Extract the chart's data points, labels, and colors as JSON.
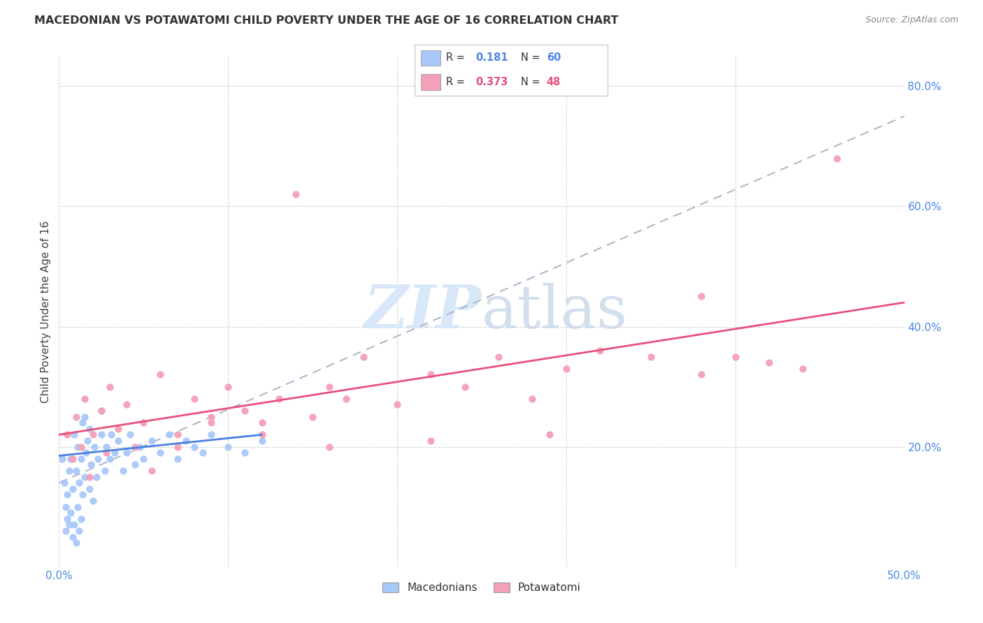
{
  "title": "MACEDONIAN VS POTAWATOMI CHILD POVERTY UNDER THE AGE OF 16 CORRELATION CHART",
  "source": "Source: ZipAtlas.com",
  "ylabel": "Child Poverty Under the Age of 16",
  "xlim": [
    0.0,
    0.5
  ],
  "ylim": [
    0.0,
    0.85
  ],
  "xtick_vals": [
    0.0,
    0.1,
    0.2,
    0.3,
    0.4,
    0.5
  ],
  "ytick_vals": [
    0.0,
    0.2,
    0.4,
    0.6,
    0.8
  ],
  "ytick_labels": [
    "",
    "20.0%",
    "40.0%",
    "60.0%",
    "80.0%"
  ],
  "xtick_labels": [
    "0.0%",
    "",
    "",
    "",
    "",
    "50.0%"
  ],
  "macedonian_R": 0.181,
  "macedonian_N": 60,
  "potawatomi_R": 0.373,
  "potawatomi_N": 48,
  "macedonian_color": "#a8c8fa",
  "potawatomi_color": "#f4a0b8",
  "macedonian_line_color": "#4a80e0",
  "potawatomi_line_color": "#e8507a",
  "watermark_color": "#d8e8f8",
  "legend_macedonians": "Macedonians",
  "legend_potawatomi": "Potawatomi",
  "mac_x": [
    0.002,
    0.003,
    0.004,
    0.004,
    0.005,
    0.005,
    0.006,
    0.006,
    0.007,
    0.007,
    0.008,
    0.008,
    0.009,
    0.009,
    0.01,
    0.01,
    0.011,
    0.011,
    0.012,
    0.012,
    0.013,
    0.013,
    0.014,
    0.014,
    0.015,
    0.015,
    0.016,
    0.017,
    0.018,
    0.018,
    0.019,
    0.02,
    0.021,
    0.022,
    0.023,
    0.025,
    0.025,
    0.027,
    0.028,
    0.03,
    0.031,
    0.033,
    0.035,
    0.038,
    0.04,
    0.042,
    0.045,
    0.048,
    0.05,
    0.055,
    0.06,
    0.065,
    0.07,
    0.075,
    0.08,
    0.085,
    0.09,
    0.1,
    0.11,
    0.12
  ],
  "mac_y": [
    0.18,
    0.14,
    0.1,
    0.06,
    0.08,
    0.12,
    0.07,
    0.16,
    0.09,
    0.18,
    0.05,
    0.13,
    0.07,
    0.22,
    0.04,
    0.16,
    0.1,
    0.2,
    0.06,
    0.14,
    0.08,
    0.18,
    0.12,
    0.24,
    0.15,
    0.25,
    0.19,
    0.21,
    0.13,
    0.23,
    0.17,
    0.11,
    0.2,
    0.15,
    0.18,
    0.22,
    0.26,
    0.16,
    0.2,
    0.18,
    0.22,
    0.19,
    0.21,
    0.16,
    0.19,
    0.22,
    0.17,
    0.2,
    0.18,
    0.21,
    0.19,
    0.22,
    0.18,
    0.21,
    0.2,
    0.19,
    0.22,
    0.2,
    0.19,
    0.21
  ],
  "pot_x": [
    0.005,
    0.008,
    0.01,
    0.013,
    0.015,
    0.018,
    0.02,
    0.025,
    0.028,
    0.03,
    0.035,
    0.04,
    0.045,
    0.05,
    0.055,
    0.06,
    0.07,
    0.08,
    0.09,
    0.1,
    0.11,
    0.12,
    0.13,
    0.14,
    0.15,
    0.16,
    0.17,
    0.18,
    0.2,
    0.22,
    0.24,
    0.26,
    0.28,
    0.3,
    0.32,
    0.35,
    0.38,
    0.4,
    0.42,
    0.44,
    0.46,
    0.38,
    0.29,
    0.22,
    0.16,
    0.12,
    0.09,
    0.07
  ],
  "pot_y": [
    0.22,
    0.18,
    0.25,
    0.2,
    0.28,
    0.15,
    0.22,
    0.26,
    0.19,
    0.3,
    0.23,
    0.27,
    0.2,
    0.24,
    0.16,
    0.32,
    0.22,
    0.28,
    0.25,
    0.3,
    0.26,
    0.24,
    0.28,
    0.62,
    0.25,
    0.3,
    0.28,
    0.35,
    0.27,
    0.32,
    0.3,
    0.35,
    0.28,
    0.33,
    0.36,
    0.35,
    0.32,
    0.35,
    0.34,
    0.33,
    0.68,
    0.45,
    0.22,
    0.21,
    0.2,
    0.22,
    0.24,
    0.2
  ],
  "mac_trend_x0": 0.0,
  "mac_trend_y0": 0.185,
  "mac_trend_x1": 0.12,
  "mac_trend_y1": 0.22,
  "pot_trend_x0": 0.0,
  "pot_trend_y0": 0.22,
  "pot_trend_x1": 0.5,
  "pot_trend_y1": 0.44,
  "dash_trend_x0": 0.0,
  "dash_trend_y0": 0.14,
  "dash_trend_x1": 0.5,
  "dash_trend_y1": 0.75
}
